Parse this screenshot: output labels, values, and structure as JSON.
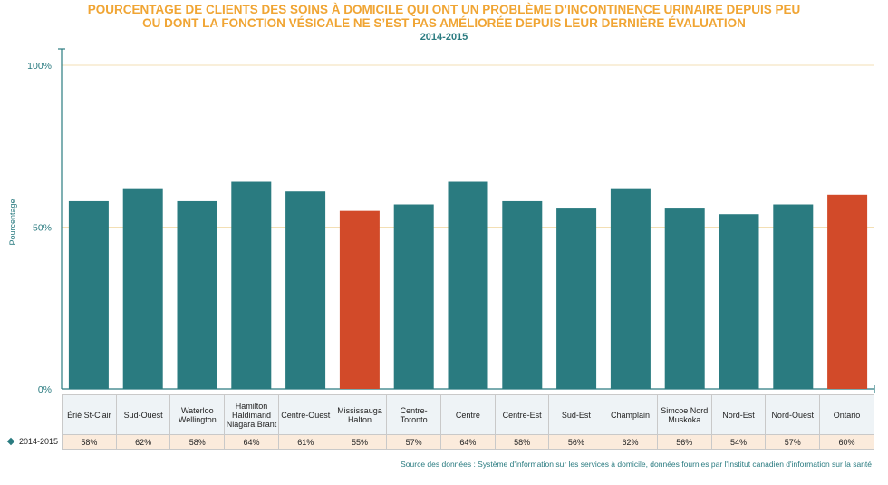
{
  "title_line1": "POURCENTAGE DE CLIENTS DES SOINS À DOMICILE QUI ONT UN PROBLÈME D’INCONTINENCE URINAIRE DEPUIS PEU",
  "title_line2": "OU DONT LA FONCTION VÉSICALE NE S’EST PAS AMÉLIORÉE DEPUIS LEUR DERNIÈRE ÉVALUATION",
  "subtitle": "2014-2015",
  "ylabel": "Pourcentage",
  "series_name": "2014-2015",
  "source": "Source des données : Système d'information sur les services à domicile, données fournies par l'Institut canadien d'information sur la santé",
  "colors": {
    "bar": "#2a7b80",
    "highlight": "#d24a29",
    "grid": "#f3dfb4",
    "title": "#f0a534",
    "axis": "#2a7b80"
  },
  "chart_data": {
    "type": "bar",
    "title": "POURCENTAGE DE CLIENTS DES SOINS À DOMICILE QUI ONT UN PROBLÈME D’INCONTINENCE URINAIRE DEPUIS PEU OU DONT LA FONCTION VÉSICALE NE S’EST PAS AMÉLIORÉE DEPUIS LEUR DERNIÈRE ÉVALUATION",
    "subtitle": "2014-2015",
    "xlabel": "",
    "ylabel": "Pourcentage",
    "ylim": [
      0,
      100
    ],
    "yticks": [
      "0%",
      "50%",
      "100%"
    ],
    "grid": true,
    "categories": [
      "Érié St-Clair",
      "Sud-Ouest",
      "Waterloo Wellington",
      "Hamilton Haldimand Niagara Brant",
      "Centre-Ouest",
      "Mississauga Halton",
      "Centre-Toronto",
      "Centre",
      "Centre-Est",
      "Sud-Est",
      "Champlain",
      "Simcoe Nord Muskoka",
      "Nord-Est",
      "Nord-Ouest",
      "Ontario"
    ],
    "series": [
      {
        "name": "2014-2015",
        "values": [
          58,
          62,
          58,
          64,
          61,
          55,
          57,
          64,
          58,
          56,
          62,
          56,
          54,
          57,
          60
        ],
        "labels": [
          "58%",
          "62%",
          "58%",
          "64%",
          "61%",
          "55%",
          "57%",
          "64%",
          "58%",
          "56%",
          "62%",
          "56%",
          "54%",
          "57%",
          "60%"
        ]
      }
    ],
    "highlighted": [
      "Mississauga Halton",
      "Ontario"
    ]
  }
}
